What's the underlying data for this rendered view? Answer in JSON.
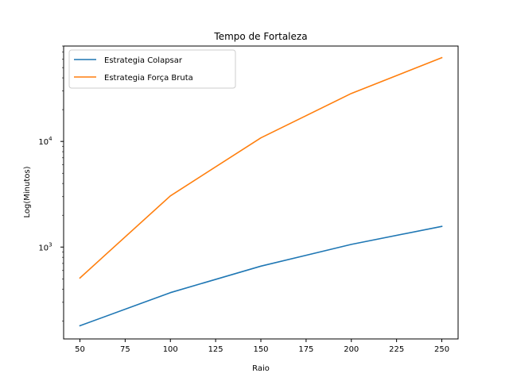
{
  "chart_data": {
    "type": "line",
    "title": "Tempo de Fortaleza",
    "xlabel": "Raio",
    "ylabel": "Log(Minutos)",
    "x": [
      50,
      100,
      150,
      200,
      250
    ],
    "xlim": [
      41,
      259
    ],
    "ylim": [
      135,
      80000
    ],
    "y_scale": "log",
    "x_ticks": [
      50,
      75,
      100,
      125,
      150,
      175,
      200,
      225,
      250
    ],
    "x_tick_labels": [
      "50",
      "75",
      "100",
      "125",
      "150",
      "175",
      "200",
      "225",
      "250"
    ],
    "y_major_ticks": [
      1000,
      10000
    ],
    "y_major_tick_base": "10",
    "y_major_tick_exponents": [
      "3",
      "4"
    ],
    "grid": false,
    "legend_position": "top-left",
    "series": [
      {
        "name": "Estrategia Colapsar",
        "color": "#1f77b4",
        "values": [
          180,
          370,
          660,
          1060,
          1570
        ]
      },
      {
        "name": "Estrategia Força Bruta",
        "color": "#ff7f0e",
        "values": [
          510,
          3050,
          10800,
          28500,
          62000
        ]
      }
    ]
  }
}
